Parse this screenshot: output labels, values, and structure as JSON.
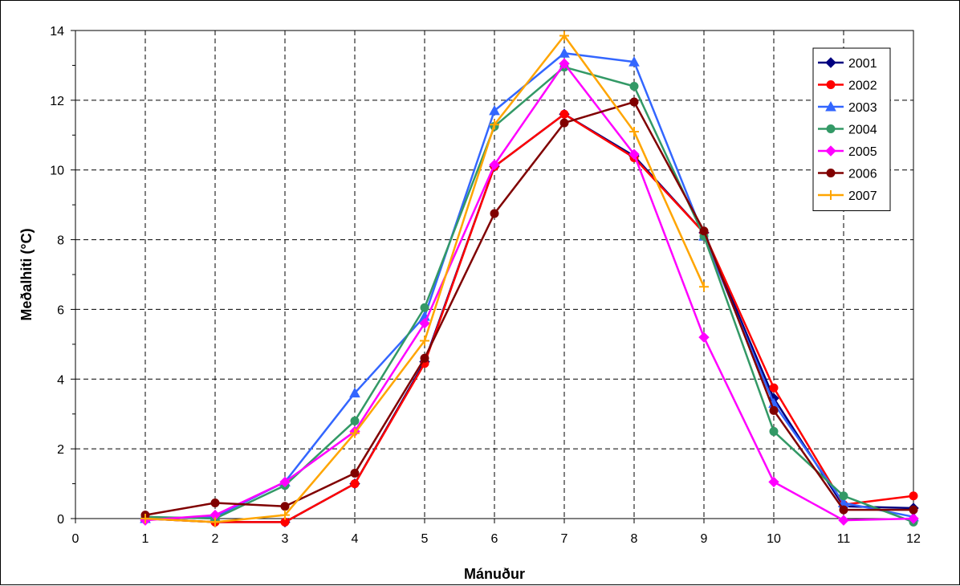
{
  "chart_data": {
    "type": "line",
    "xlabel": "Mánuður",
    "ylabel": "Meðalhiti (°C)",
    "xlim": [
      0,
      12
    ],
    "ylim": [
      0,
      14
    ],
    "xticks": [
      "0",
      "1",
      "2",
      "3",
      "4",
      "5",
      "6",
      "7",
      "8",
      "9",
      "10",
      "11",
      "12"
    ],
    "yticks": [
      "0",
      "2",
      "4",
      "6",
      "8",
      "10",
      "12",
      "14"
    ],
    "grid": true,
    "legend_position": "top-right",
    "series": [
      {
        "name": "2001",
        "color": "#000080",
        "marker": "diamond",
        "x": [
          1,
          2,
          3,
          4,
          5,
          6,
          7,
          8,
          9,
          10,
          11,
          12
        ],
        "y": [
          0.0,
          -0.1,
          -0.1,
          1.0,
          4.5,
          10.1,
          11.6,
          10.4,
          8.2,
          3.45,
          0.35,
          0.3
        ]
      },
      {
        "name": "2002",
        "color": "#ff0000",
        "marker": "circle",
        "x": [
          1,
          2,
          3,
          4,
          5,
          6,
          7,
          8,
          9,
          10,
          11,
          12
        ],
        "y": [
          0.0,
          -0.1,
          -0.1,
          1.0,
          4.45,
          10.1,
          11.6,
          10.35,
          8.2,
          3.75,
          0.4,
          0.65
        ]
      },
      {
        "name": "2003",
        "color": "#3366ff",
        "marker": "triangle",
        "x": [
          1,
          2,
          3,
          4,
          5,
          6,
          7,
          8,
          9,
          10,
          11,
          12
        ],
        "y": [
          0.0,
          0.05,
          1.05,
          3.6,
          5.8,
          11.7,
          13.35,
          13.1,
          8.1,
          3.3,
          0.45,
          0.05
        ]
      },
      {
        "name": "2004",
        "color": "#339966",
        "marker": "circle",
        "x": [
          1,
          2,
          3,
          4,
          5,
          6,
          7,
          8,
          9,
          10,
          11,
          12
        ],
        "y": [
          0.05,
          0.0,
          0.95,
          2.8,
          6.05,
          11.25,
          12.95,
          12.4,
          8.1,
          2.5,
          0.65,
          -0.1
        ]
      },
      {
        "name": "2005",
        "color": "#ff00ff",
        "marker": "diamond",
        "x": [
          1,
          2,
          3,
          4,
          5,
          6,
          7,
          8,
          9,
          10,
          11,
          12
        ],
        "y": [
          -0.05,
          0.1,
          1.05,
          2.5,
          5.6,
          10.15,
          13.05,
          10.45,
          5.2,
          1.05,
          -0.05,
          0.0
        ]
      },
      {
        "name": "2006",
        "color": "#800000",
        "marker": "circle",
        "x": [
          1,
          2,
          3,
          4,
          5,
          6,
          7,
          8,
          9,
          10,
          11,
          12
        ],
        "y": [
          0.1,
          0.45,
          0.35,
          1.3,
          4.6,
          8.75,
          11.35,
          11.95,
          8.25,
          3.1,
          0.25,
          0.25
        ]
      },
      {
        "name": "2007",
        "color": "#ffa500",
        "marker": "plus",
        "x": [
          1,
          2,
          3,
          4,
          5,
          6,
          7,
          8,
          9
        ],
        "y": [
          0.0,
          -0.1,
          0.1,
          2.45,
          5.1,
          11.3,
          13.85,
          11.1,
          6.65
        ]
      }
    ]
  }
}
